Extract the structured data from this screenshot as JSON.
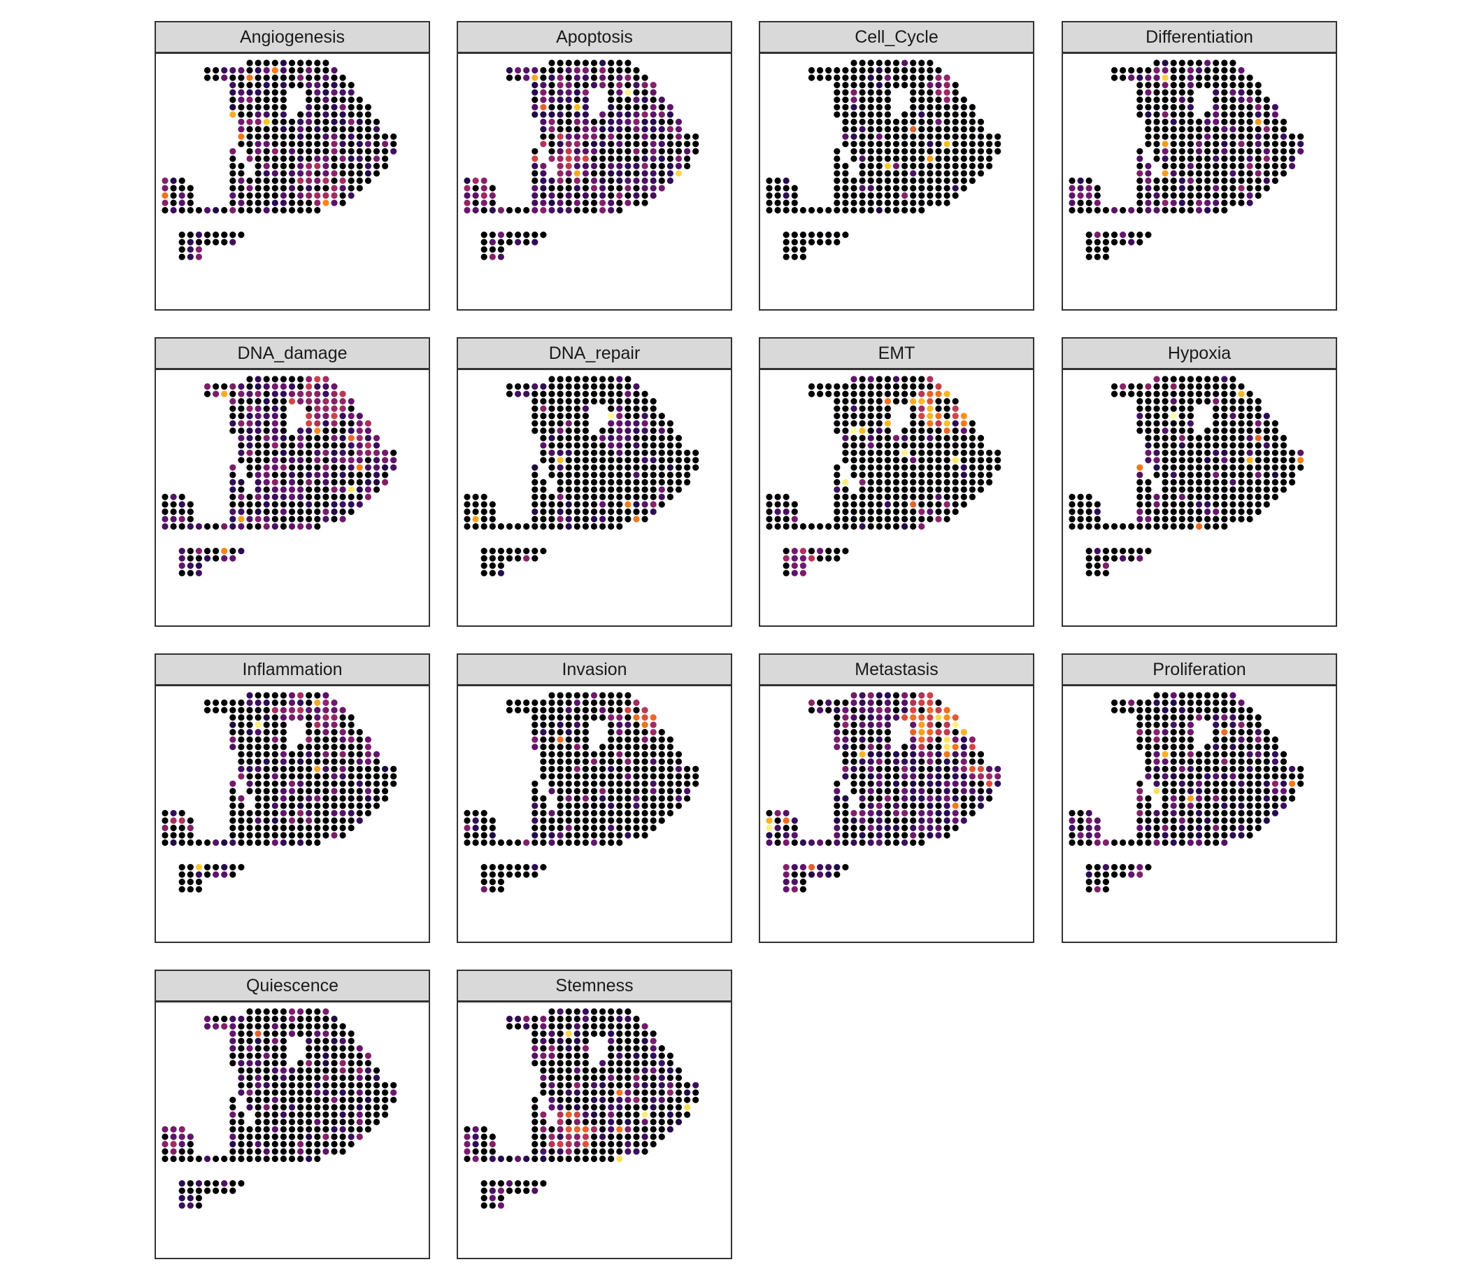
{
  "chart_data": {
    "type": "scatter",
    "description_kind": "faceted spatial spot plot",
    "facets": [
      {
        "title": "Angiogenesis"
      },
      {
        "title": "Apoptosis"
      },
      {
        "title": "Cell_Cycle"
      },
      {
        "title": "Differentiation"
      },
      {
        "title": "DNA_damage"
      },
      {
        "title": "DNA_repair"
      },
      {
        "title": "EMT"
      },
      {
        "title": "Hypoxia"
      },
      {
        "title": "Inflammation"
      },
      {
        "title": "Invasion"
      },
      {
        "title": "Metastasis"
      },
      {
        "title": "Proliferation"
      },
      {
        "title": "Quiescence"
      },
      {
        "title": "Stemness"
      }
    ],
    "layout": {
      "columns": 4,
      "rows": 4
    },
    "color_scale": {
      "name": "inferno",
      "low": "#000004",
      "mid": "#781c6d",
      "high_mid": "#ed6925",
      "high": "#fcffa4"
    },
    "grid_on": false,
    "legend": "none"
  }
}
